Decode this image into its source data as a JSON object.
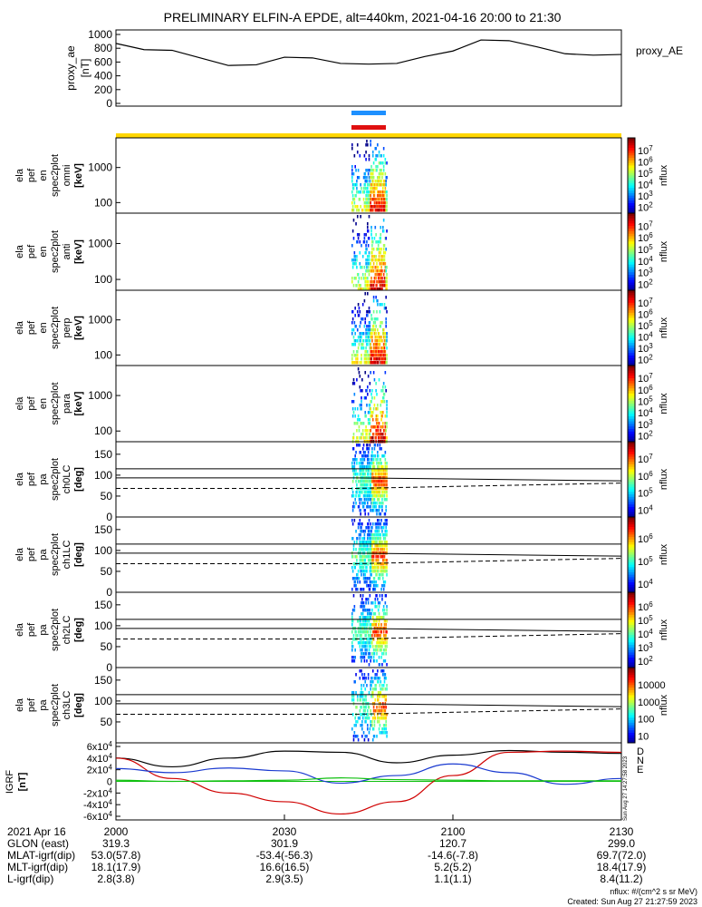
{
  "title": "PRELIMINARY ELFIN-A EPDE, alt=440km, 2021-04-16 20:00 to 21:30",
  "chart_data": {
    "type": "line",
    "time_range": [
      "2021-04-16 20:00",
      "2021-04-16 21:30"
    ],
    "panels": [
      {
        "id": "ae",
        "ylabel": "proxy_ae",
        "yunit": "[nT]",
        "legend": "proxy_AE",
        "ylim": [
          0,
          1000
        ],
        "yticks": [
          "0",
          "200",
          "400",
          "600",
          "800",
          "1000"
        ],
        "series": [
          {
            "name": "proxy_AE",
            "color": "#000000",
            "x_min": [
              0,
              5,
              10,
              15,
              20,
              25,
              30,
              35,
              40,
              45,
              50,
              55,
              60,
              65,
              70,
              75,
              80,
              85,
              90
            ],
            "y": [
              870,
              780,
              770,
              660,
              550,
              560,
              670,
              660,
              580,
              570,
              580,
              680,
              760,
              920,
              910,
              820,
              720,
              700,
              710
            ]
          }
        ]
      },
      {
        "id": "omni",
        "ylabel_lines": [
          "ela",
          "pef",
          "en",
          "spec2plot",
          "omni"
        ],
        "yunit": "[keV]",
        "scale": "log",
        "ylim": [
          50,
          7000
        ],
        "yticks": [
          "100",
          "1000"
        ],
        "cbar_ticks": [
          "10^2",
          "10^3",
          "10^4",
          "10^5",
          "10^6",
          "10^7"
        ],
        "cbar_label": "nflux"
      },
      {
        "id": "anti",
        "ylabel_lines": [
          "ela",
          "pef",
          "en",
          "spec2plot",
          "anti"
        ],
        "yunit": "[keV]",
        "scale": "log",
        "ylim": [
          50,
          7000
        ],
        "yticks": [
          "100",
          "1000"
        ],
        "cbar_ticks": [
          "10^2",
          "10^3",
          "10^4",
          "10^5",
          "10^6",
          "10^7"
        ],
        "cbar_label": "nflux"
      },
      {
        "id": "perp",
        "ylabel_lines": [
          "ela",
          "pef",
          "en",
          "spec2plot",
          "perp"
        ],
        "yunit": "[keV]",
        "scale": "log",
        "ylim": [
          50,
          7000
        ],
        "yticks": [
          "100",
          "1000"
        ],
        "cbar_ticks": [
          "10^2",
          "10^3",
          "10^4",
          "10^5",
          "10^6",
          "10^7"
        ],
        "cbar_label": "nflux"
      },
      {
        "id": "para",
        "ylabel_lines": [
          "ela",
          "pef",
          "en",
          "spec2plot",
          "para"
        ],
        "yunit": "[keV]",
        "scale": "log",
        "ylim": [
          50,
          7000
        ],
        "yticks": [
          "100",
          "1000"
        ],
        "cbar_ticks": [
          "10^2",
          "10^3",
          "10^4",
          "10^5",
          "10^6",
          "10^7"
        ],
        "cbar_label": "nflux"
      },
      {
        "id": "ch0",
        "ylabel_lines": [
          "ela",
          "pef",
          "pa",
          "spec2plot",
          "ch0LC"
        ],
        "yunit": "[deg]",
        "ylim": [
          0,
          180
        ],
        "yticks": [
          "0",
          "50",
          "100",
          "150"
        ],
        "cbar_ticks": [
          "10^4",
          "10^5",
          "10^6",
          "10^7"
        ],
        "cbar_label": "nflux"
      },
      {
        "id": "ch1",
        "ylabel_lines": [
          "ela",
          "pef",
          "pa",
          "spec2plot",
          "ch1LC"
        ],
        "yunit": "[deg]",
        "ylim": [
          0,
          180
        ],
        "yticks": [
          "0",
          "50",
          "100",
          "150"
        ],
        "cbar_ticks": [
          "10^4",
          "10^5",
          "10^6"
        ],
        "cbar_label": "nflux"
      },
      {
        "id": "ch2",
        "ylabel_lines": [
          "ela",
          "pef",
          "pa",
          "spec2plot",
          "ch2LC"
        ],
        "yunit": "[deg]",
        "ylim": [
          0,
          180
        ],
        "yticks": [
          "0",
          "50",
          "100",
          "150"
        ],
        "cbar_ticks": [
          "10^2",
          "10^3",
          "10^4",
          "10^5",
          "10^6"
        ],
        "cbar_label": "nflux"
      },
      {
        "id": "ch3",
        "ylabel_lines": [
          "ela",
          "pef",
          "pa",
          "spec2plot",
          "ch3LC"
        ],
        "yunit": "[deg]",
        "ylim": [
          0,
          180
        ],
        "yticks": [
          "50",
          "100",
          "150"
        ],
        "cbar_ticks": [
          "10",
          "100",
          "1000",
          "10000"
        ],
        "cbar_label": "nflux"
      },
      {
        "id": "igrf",
        "ylabel": "IGRF",
        "yunit": "[nT]",
        "ylim": [
          -60000,
          60000
        ],
        "yticks": [
          "-6x10^4",
          "-4x10^4",
          "-2x10^4",
          "0",
          "2x10^4",
          "4x10^4",
          "6x10^4"
        ],
        "legend": [
          {
            "name": "D",
            "color": "#d00000"
          },
          {
            "name": "N",
            "color": "#1a3ad0"
          },
          {
            "name": "E",
            "color": "#10c010"
          }
        ],
        "series": [
          {
            "name": "black",
            "color": "#000000",
            "x_min": [
              0,
              10,
              20,
              30,
              40,
              50,
              60,
              70,
              80,
              90
            ],
            "y": [
              40000,
              25000,
              40000,
              52000,
              50000,
              32000,
              45000,
              53000,
              50000,
              48000
            ]
          },
          {
            "name": "D",
            "color": "#d00000",
            "x_min": [
              0,
              10,
              20,
              30,
              40,
              50,
              60,
              70,
              80,
              90
            ],
            "y": [
              40000,
              5000,
              -20000,
              -35000,
              -56000,
              -35000,
              10000,
              50000,
              52000,
              50000
            ]
          },
          {
            "name": "N",
            "color": "#1a3ad0",
            "x_min": [
              0,
              10,
              20,
              30,
              40,
              50,
              60,
              70,
              80,
              90
            ],
            "y": [
              22000,
              15000,
              23000,
              18000,
              -3000,
              10000,
              30000,
              15000,
              -5000,
              5000
            ]
          },
          {
            "name": "E",
            "color": "#10c010",
            "x_min": [
              0,
              10,
              20,
              30,
              40,
              50,
              60,
              70,
              80,
              90
            ],
            "y": [
              2000,
              0,
              1000,
              2000,
              6000,
              3000,
              2000,
              1000,
              1000,
              1000
            ]
          }
        ]
      }
    ],
    "xaxis": {
      "row_labels": [
        "2021 Apr 16",
        "GLON (east)",
        "MLAT-igrf(dip)",
        "MLT-igrf(dip)",
        "L-igrf(dip)"
      ],
      "columns": [
        {
          "t": "2000",
          "vals": [
            "319.3",
            "53.0(57.8)",
            "18.1(17.9)",
            "2.8(3.8)"
          ]
        },
        {
          "t": "2030",
          "vals": [
            "301.9",
            "-53.4(-56.3)",
            "16.6(16.5)",
            "2.9(3.5)"
          ]
        },
        {
          "t": "2100",
          "vals": [
            "120.7",
            "-14.6(-7.8)",
            "5.2(5.2)",
            "1.1(1.1)"
          ]
        },
        {
          "t": "2130",
          "vals": [
            "299.0",
            "69.7(72.0)",
            "18.4(17.9)",
            "8.4(11.2)"
          ]
        }
      ]
    },
    "footer": {
      "units": "nflux: #/(cm^2 s sr MeV)",
      "created": "Created: Sun Aug 27 21:27:59 2023",
      "side_stamp": "Sun Aug 27 14:27:58 2023"
    }
  }
}
